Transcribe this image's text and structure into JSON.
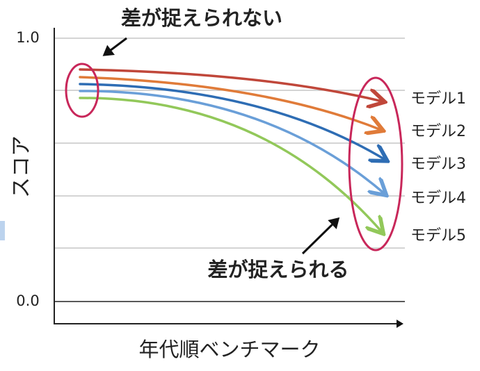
{
  "axes": {
    "y_label": "スコア",
    "x_label": "年代順ベンチマーク",
    "y_tick_labels": [
      "1.0",
      "0.0"
    ]
  },
  "models": [
    "モデル1",
    "モデル2",
    "モデル3",
    "モデル4",
    "モデル5"
  ],
  "annotations": {
    "top": "差が捉えられない",
    "bottom": "差が捉えられる"
  }
}
